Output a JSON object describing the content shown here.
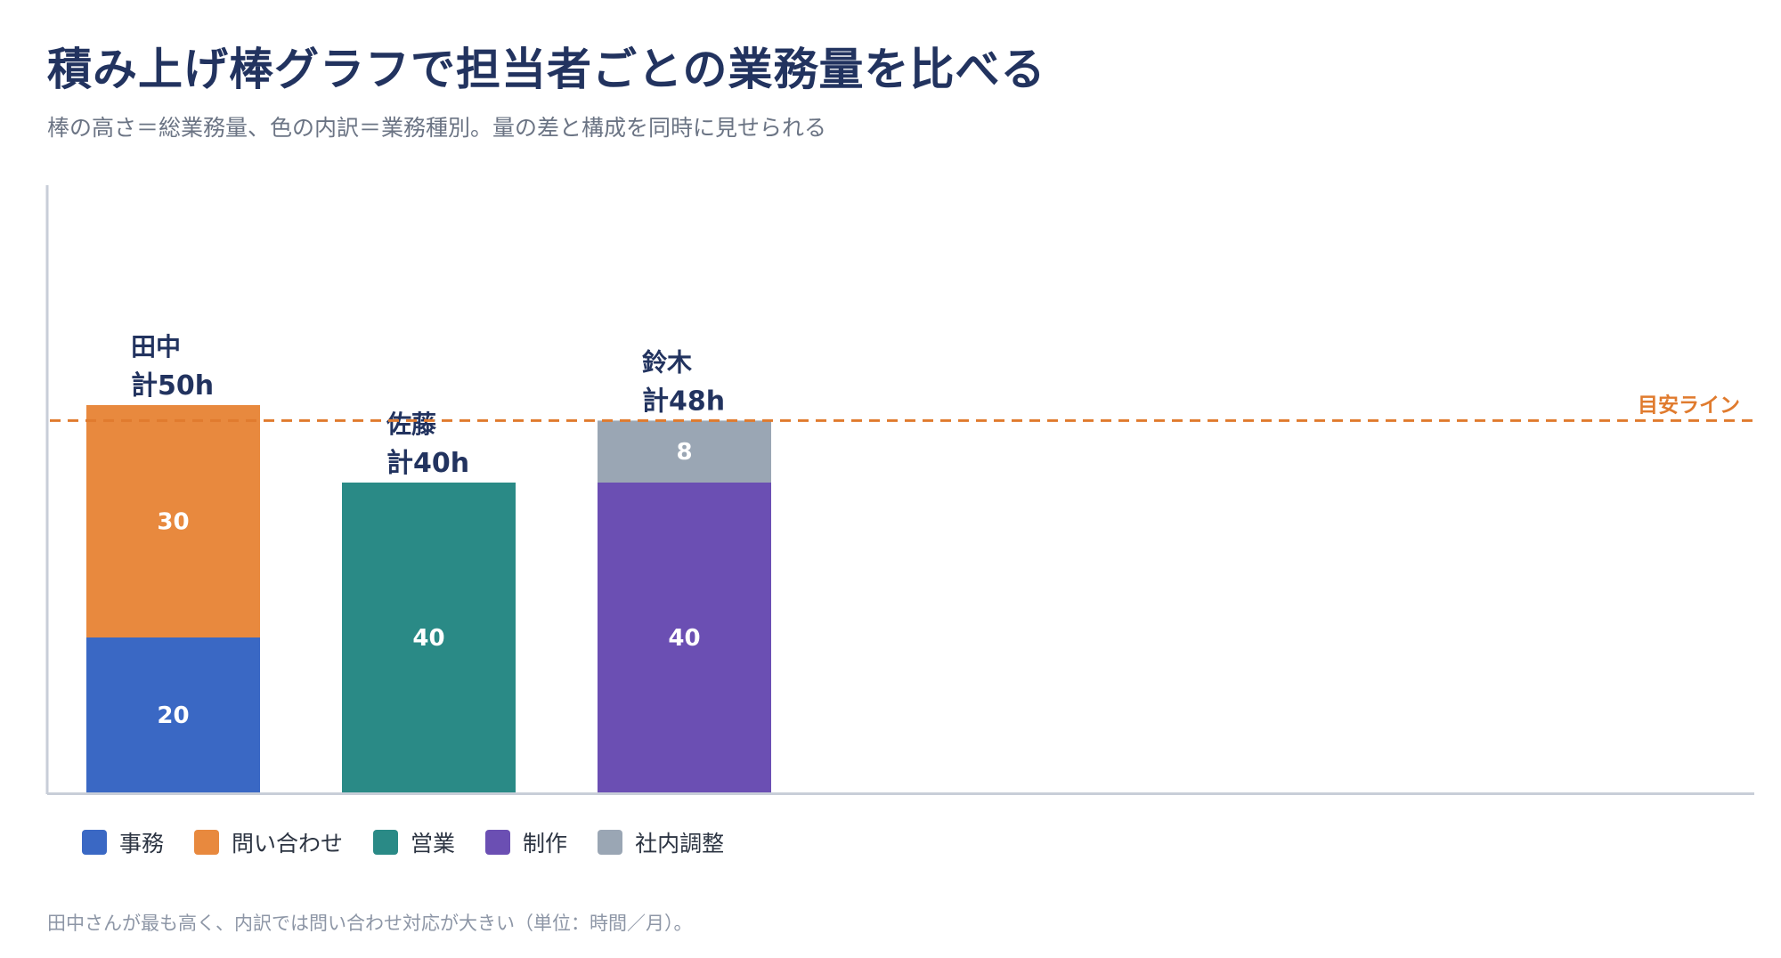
{
  "title": "積み上げ棒グラフで担当者ごとの業務量を比べる",
  "subtitle": "棒の高さ＝総業務量、色の内訳＝業務種別。量の差と構成を同時に見せられる",
  "footnote": "田中さんが最も高く、内訳では問い合わせ対応が大きい（単位：時間／月）。",
  "chart_data": {
    "type": "bar",
    "stacked": true,
    "unit": "h",
    "categories": [
      "田中",
      "佐藤",
      "鈴木"
    ],
    "total_labels": [
      "計50h",
      "計40h",
      "計48h"
    ],
    "series": [
      {
        "name": "事務",
        "color": "#3a68c4",
        "values": [
          20,
          0,
          0
        ]
      },
      {
        "name": "問い合わせ",
        "color": "#e8893e",
        "values": [
          30,
          0,
          0
        ]
      },
      {
        "name": "営業",
        "color": "#2a8a86",
        "values": [
          0,
          40,
          0
        ]
      },
      {
        "name": "制作",
        "color": "#6b4fb3",
        "values": [
          0,
          0,
          40
        ]
      },
      {
        "name": "社内調整",
        "color": "#9aa6b4",
        "values": [
          0,
          0,
          8
        ]
      }
    ],
    "ylim": [
      0,
      60
    ],
    "reference_line": {
      "label": "目安ライン",
      "value": 48,
      "color": "#e07b2e"
    },
    "legend": "bottom-left",
    "grid": false
  }
}
